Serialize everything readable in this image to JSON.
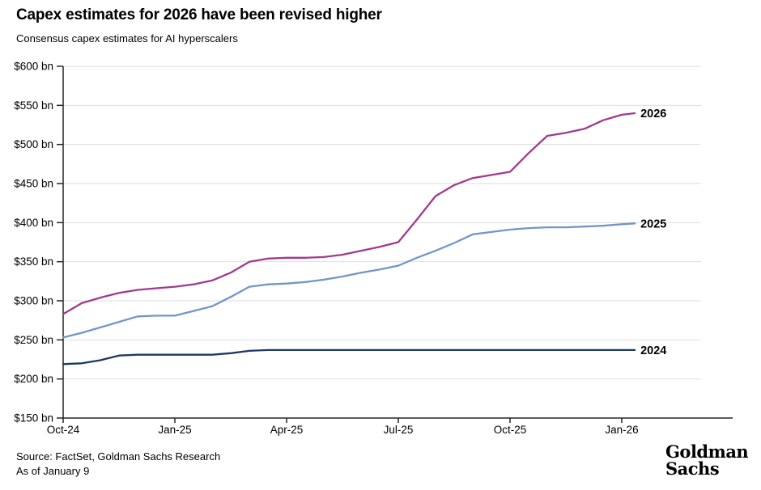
{
  "header": {
    "title": "Capex estimates for 2026 have been revised higher",
    "subtitle": "Consensus capex estimates for AI hyperscalers"
  },
  "footer": {
    "source": "Source: FactSet, Goldman Sachs Research",
    "as_of": "As of January 9",
    "logo_line1": "Goldman",
    "logo_line2": "Sachs"
  },
  "chart_data": {
    "type": "line",
    "title": "Capex estimates for 2026 have been revised higher",
    "subtitle": "Consensus capex estimates for AI hyperscalers",
    "xlabel": "",
    "ylabel": "",
    "unit": "$ bn",
    "grid": true,
    "legend_position": "line-end-labels",
    "ylim": [
      150,
      600
    ],
    "xlim_months_from_oct24": [
      0,
      17.1
    ],
    "y_ticks": [
      {
        "label": "$600 bn",
        "value": 600
      },
      {
        "label": "$550 bn",
        "value": 550
      },
      {
        "label": "$500 bn",
        "value": 500
      },
      {
        "label": "$450 bn",
        "value": 450
      },
      {
        "label": "$400 bn",
        "value": 400
      },
      {
        "label": "$350 bn",
        "value": 350
      },
      {
        "label": "$300 bn",
        "value": 300
      },
      {
        "label": "$250 bn",
        "value": 250
      },
      {
        "label": "$200 bn",
        "value": 200
      },
      {
        "label": "$150 bn",
        "value": 150
      }
    ],
    "x_ticks": [
      {
        "label": "Oct-24",
        "m": 0
      },
      {
        "label": "Jan-25",
        "m": 3
      },
      {
        "label": "Apr-25",
        "m": 6
      },
      {
        "label": "Jul-25",
        "m": 9
      },
      {
        "label": "Oct-25",
        "m": 12
      },
      {
        "label": "Jan-26",
        "m": 15
      }
    ],
    "colors": {
      "grid": "#DEDEDE",
      "axis": "#262626"
    },
    "series": [
      {
        "name": "2026",
        "color": "#A23A8C",
        "points": [
          [
            0,
            283
          ],
          [
            0.5,
            297
          ],
          [
            1,
            304
          ],
          [
            1.5,
            310
          ],
          [
            2,
            314
          ],
          [
            2.5,
            316
          ],
          [
            3,
            318
          ],
          [
            3.5,
            321
          ],
          [
            4,
            326
          ],
          [
            4.5,
            336
          ],
          [
            5,
            350
          ],
          [
            5.5,
            354
          ],
          [
            6,
            355
          ],
          [
            6.5,
            355
          ],
          [
            7,
            356
          ],
          [
            7.5,
            359
          ],
          [
            8,
            364
          ],
          [
            8.5,
            369
          ],
          [
            9,
            375
          ],
          [
            9.5,
            404
          ],
          [
            10,
            434
          ],
          [
            10.5,
            448
          ],
          [
            11,
            457
          ],
          [
            11.5,
            461
          ],
          [
            12,
            465
          ],
          [
            12.5,
            489
          ],
          [
            13,
            511
          ],
          [
            13.5,
            515
          ],
          [
            14,
            520
          ],
          [
            14.5,
            531
          ],
          [
            15,
            538
          ],
          [
            15.35,
            540
          ]
        ]
      },
      {
        "name": "2025",
        "color": "#7296C8",
        "points": [
          [
            0,
            253
          ],
          [
            0.5,
            259
          ],
          [
            1,
            266
          ],
          [
            1.5,
            273
          ],
          [
            2,
            280
          ],
          [
            2.5,
            281
          ],
          [
            3,
            281
          ],
          [
            3.5,
            287
          ],
          [
            4,
            293
          ],
          [
            4.5,
            305
          ],
          [
            5,
            318
          ],
          [
            5.5,
            321
          ],
          [
            6,
            322
          ],
          [
            6.5,
            324
          ],
          [
            7,
            327
          ],
          [
            7.5,
            331
          ],
          [
            8,
            336
          ],
          [
            8.5,
            340
          ],
          [
            9,
            345
          ],
          [
            9.5,
            355
          ],
          [
            10,
            364
          ],
          [
            10.5,
            374
          ],
          [
            11,
            385
          ],
          [
            11.5,
            388
          ],
          [
            12,
            391
          ],
          [
            12.5,
            393
          ],
          [
            13,
            394
          ],
          [
            13.5,
            394
          ],
          [
            14,
            395
          ],
          [
            14.5,
            396
          ],
          [
            15,
            398
          ],
          [
            15.35,
            399
          ]
        ]
      },
      {
        "name": "2024",
        "color": "#1F3864",
        "points": [
          [
            0,
            219
          ],
          [
            0.5,
            220
          ],
          [
            1,
            224
          ],
          [
            1.5,
            230
          ],
          [
            2,
            231
          ],
          [
            4,
            231
          ],
          [
            4.5,
            233
          ],
          [
            5,
            236
          ],
          [
            5.5,
            237
          ],
          [
            10,
            237
          ],
          [
            15.35,
            237
          ]
        ]
      }
    ]
  }
}
